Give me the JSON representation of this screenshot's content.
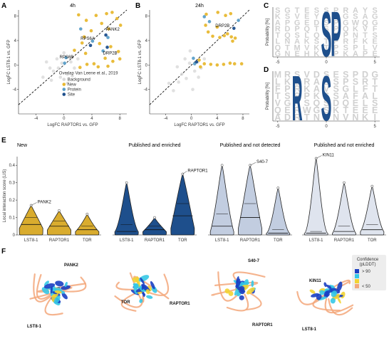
{
  "panel_letters": [
    "A",
    "B",
    "C",
    "D",
    "E",
    "F"
  ],
  "colors": {
    "background": "#d8d8d8",
    "new": "#e8b830",
    "protein": "#5b9fc9",
    "site": "#1e4f8c",
    "violin_new": "#d9ac2e",
    "violin_enriched": "#1e4f8c",
    "violin_notdetected": "#c2cde0",
    "violin_notenriched": "#dfe4ee"
  },
  "icons": [
    "structure-pank2-icon",
    "structure-raptor1-icon",
    "structure-s40-7-icon",
    "structure-kin11-icon"
  ],
  "chart_data": [
    {
      "id": "A",
      "type": "scatter",
      "title": "4h",
      "xlabel": "LogFC RAPTOR1 vs. GFP",
      "ylabel": "LogFC LST8-1 vs. GFP",
      "xlim": [
        -6.5,
        9
      ],
      "ylim": [
        -8,
        9
      ],
      "xticks": [
        -4,
        0,
        4,
        8
      ],
      "yticks": [
        -4,
        0,
        4,
        8
      ],
      "diagonal": true,
      "legend_title": "Overlap Van Leene et al., 2019",
      "legend": [
        "Background",
        "New",
        "Protein",
        "Site"
      ],
      "series": [
        {
          "name": "Background",
          "points": [
            [
              -1.5,
              -1
            ],
            [
              -0.5,
              -2
            ],
            [
              0.5,
              -1.5
            ],
            [
              -2,
              -0.5
            ],
            [
              1,
              0.5
            ],
            [
              -1,
              1
            ],
            [
              -3,
              -2
            ],
            [
              0.5,
              -3
            ],
            [
              -0.3,
              0.3
            ],
            [
              1.5,
              -0.5
            ],
            [
              -1.8,
              -2.5
            ],
            [
              2,
              1
            ],
            [
              0,
              2
            ],
            [
              -2.5,
              0.5
            ],
            [
              1.2,
              -1.8
            ],
            [
              -0.8,
              -0.5
            ]
          ]
        },
        {
          "name": "New",
          "points": [
            [
              2.1,
              8.2
            ],
            [
              3.2,
              7.3
            ],
            [
              4.6,
              8.1
            ],
            [
              6.1,
              8.4
            ],
            [
              6.9,
              8.6
            ],
            [
              7.6,
              7.6
            ],
            [
              5.4,
              6.8
            ],
            [
              3.9,
              5.6
            ],
            [
              6.4,
              5.9
            ],
            [
              8.1,
              6.5
            ],
            [
              2.6,
              3.6
            ],
            [
              6.7,
              3.0
            ],
            [
              5.1,
              3.5
            ],
            [
              7.8,
              2.2
            ],
            [
              3.3,
              0.1
            ],
            [
              4.3,
              0.2
            ],
            [
              6.3,
              -0.2
            ],
            [
              2.3,
              -0.4
            ],
            [
              3.1,
              1.9
            ],
            [
              8.0,
              1.0
            ],
            [
              5.9,
              1.1
            ],
            [
              1.5,
              2.4
            ],
            [
              7.0,
              0.6
            ],
            [
              4.9,
              -0.3
            ],
            [
              2.9,
              4.6
            ]
          ]
        },
        {
          "name": "Protein",
          "points": [
            [
              2.4,
              5.9
            ],
            [
              4.1,
              3.9
            ],
            [
              5.6,
              2.3
            ],
            [
              6.3,
              4.5
            ],
            [
              0.1,
              0.3
            ],
            [
              0.3,
              1.2
            ]
          ]
        },
        {
          "name": "Site",
          "points": [
            [
              3.8,
              3.2
            ],
            [
              6.0,
              4.9
            ],
            [
              6.2,
              2.9
            ]
          ]
        }
      ],
      "annotations": [
        {
          "text": "RPS6A",
          "x": 3.8,
          "y": 3.2
        },
        {
          "text": "PANK2",
          "x": 6.0,
          "y": 4.9
        },
        {
          "text": "DRP2B",
          "x": 6.2,
          "y": 2.9
        },
        {
          "text": "RPS6B",
          "x": 2.2,
          "y": 1.3
        }
      ]
    },
    {
      "id": "B",
      "type": "scatter",
      "title": "24h",
      "xlabel": "LogFC RAPTOR1 vs. GFP",
      "ylabel": "LogFC LST8-1 vs. GFP",
      "xlim": [
        -6.5,
        9
      ],
      "ylim": [
        -8,
        9
      ],
      "xticks": [
        -4,
        0,
        4,
        8
      ],
      "yticks": [
        -4,
        0,
        4,
        8
      ],
      "diagonal": true,
      "series": [
        {
          "name": "Background",
          "points": [
            [
              -1.5,
              -1.5
            ],
            [
              -0.8,
              -2.2
            ],
            [
              0.5,
              -1
            ],
            [
              -2.2,
              -0.3
            ],
            [
              1,
              0.5
            ],
            [
              -1,
              1
            ],
            [
              -3.5,
              -3
            ],
            [
              0.2,
              -4
            ],
            [
              -0.3,
              0.3
            ],
            [
              1.5,
              -0.5
            ],
            [
              -2,
              -2.8
            ],
            [
              2,
              1
            ],
            [
              -0.2,
              2.3
            ],
            [
              -2.8,
              -4.2
            ],
            [
              1.1,
              -2
            ]
          ]
        },
        {
          "name": "New",
          "points": [
            [
              2.3,
              8.3
            ],
            [
              4.1,
              8.6
            ],
            [
              5.3,
              8.1
            ],
            [
              6.1,
              8.4
            ],
            [
              2.2,
              6.5
            ],
            [
              2.6,
              5.4
            ],
            [
              4.0,
              6.2
            ],
            [
              3.3,
              4.7
            ],
            [
              4.4,
              4.5
            ],
            [
              5.1,
              4.8
            ],
            [
              6.2,
              4.6
            ],
            [
              6.8,
              4.4
            ],
            [
              5.6,
              5.1
            ],
            [
              6.4,
              3.9
            ],
            [
              2.0,
              0.2
            ],
            [
              3.0,
              0.1
            ],
            [
              4.0,
              0.0
            ],
            [
              5.0,
              0.1
            ],
            [
              6.0,
              0.3
            ],
            [
              6.7,
              0.2
            ],
            [
              7.8,
              0.2
            ],
            [
              1.4,
              -0.3
            ],
            [
              1.2,
              0.8
            ]
          ]
        },
        {
          "name": "Protein",
          "points": [
            [
              2.0,
              7.9
            ],
            [
              2.8,
              7.1
            ],
            [
              0.5,
              0.2
            ],
            [
              0.3,
              1.1
            ],
            [
              7.3,
              7.3
            ]
          ]
        },
        {
          "name": "Site",
          "points": [
            [
              6.6,
              6.0
            ],
            [
              0.8,
              0.5
            ]
          ]
        }
      ],
      "annotations": [
        {
          "text": "DRP2B",
          "x": 6.6,
          "y": 6.0
        }
      ]
    },
    {
      "id": "C",
      "type": "other",
      "subtype": "sequence-logo",
      "ylabel": "Probability [%]",
      "xticks": [
        -5,
        0,
        5
      ],
      "highlight": [
        {
          "letter": "S",
          "position": 0
        },
        {
          "letter": "P",
          "position": 1
        }
      ],
      "background_rows": [
        "SGTESSPRAYS",
        "KSVEYSPGSAG",
        "APGEDSPGWQG",
        "RDPQTSPQKVF",
        "TQSLQTPPNTS",
        "LNAKSTPRFKE",
        "QTMVKTPSPLV",
        "GNEHKSPKAPE"
      ]
    },
    {
      "id": "D",
      "type": "other",
      "subtype": "sequence-logo",
      "ylabel": "Probability [%]",
      "xticks": [
        -5,
        0,
        5
      ],
      "highlight": [
        {
          "letter": "R",
          "position": -3
        },
        {
          "letter": "S",
          "position": 0
        }
      ],
      "background_rows": [
        "MRSVDSESPDG",
        "LKLRAESPSRT",
        "FPRKAVSGLFT",
        "TSRPKSSAFAL",
        "VGRSQSDQELS",
        "QERWGSKTEEE",
        "ADRTNSNVNKI"
      ]
    },
    {
      "id": "E",
      "type": "violin",
      "ylabel": "Local interaction score (LIS)",
      "ylim": [
        0,
        0.45
      ],
      "yticks": [
        0,
        0.1,
        0.2,
        0.3,
        0.4
      ],
      "categories": [
        "LST8-1",
        "RAPTOR1",
        "TOR"
      ],
      "groups": [
        {
          "title": "New",
          "label": "PANK2",
          "label_target": "LST8-1",
          "label_value": 0.17,
          "values": {
            "LST8-1": {
              "max": 0.17,
              "median": 0.06,
              "q1": 0.03,
              "q3": 0.1
            },
            "RAPTOR1": {
              "max": 0.14,
              "median": 0.05,
              "q1": 0.02,
              "q3": 0.08
            },
            "TOR": {
              "max": 0.12,
              "median": 0.03,
              "q1": 0.01,
              "q3": 0.05
            }
          }
        },
        {
          "title": "Published and enriched",
          "label": "RAPTOR1",
          "label_target": "TOR",
          "label_value": 0.35,
          "values": {
            "LST8-1": {
              "max": 0.3,
              "median": 0.02,
              "q1": 0.01,
              "q3": 0.06
            },
            "RAPTOR1": {
              "max": 0.1,
              "median": 0.03,
              "q1": 0.01,
              "q3": 0.05
            },
            "TOR": {
              "max": 0.35,
              "median": 0.11,
              "q1": 0.03,
              "q3": 0.18
            }
          }
        },
        {
          "title": "Published and not detected",
          "label": "S40-7",
          "label_target": "RAPTOR1",
          "label_value": 0.4,
          "values": {
            "LST8-1": {
              "max": 0.4,
              "median": 0.05,
              "q1": 0.01,
              "q3": 0.12
            },
            "RAPTOR1": {
              "max": 0.4,
              "median": 0.1,
              "q1": 0.03,
              "q3": 0.18
            },
            "TOR": {
              "max": 0.27,
              "median": 0.01,
              "q1": 0.0,
              "q3": 0.03
            }
          }
        },
        {
          "title": "Published and not enriched",
          "label": "KIN11",
          "label_target": "LST8-1",
          "label_value": 0.44,
          "values": {
            "LST8-1": {
              "max": 0.44,
              "median": 0.01,
              "q1": 0.0,
              "q3": 0.02
            },
            "RAPTOR1": {
              "max": 0.3,
              "median": 0.02,
              "q1": 0.0,
              "q3": 0.05
            },
            "TOR": {
              "max": 0.28,
              "median": 0.03,
              "q1": 0.01,
              "q3": 0.06
            }
          }
        }
      ]
    }
  ],
  "panelF": {
    "legend_title": "Confidence\n(pLDDT)",
    "legend": [
      {
        "label": "> 90",
        "color": "#1a3fc2"
      },
      {
        "label": "",
        "color": "#35c8e6"
      },
      {
        "label": "",
        "color": "#f2d332"
      },
      {
        "label": "< 50",
        "color": "#f3a77a"
      }
    ],
    "structures": [
      {
        "name": "PANK2",
        "partner": "LST8-1"
      },
      {
        "name": "RAPTOR1",
        "partner": "TOR"
      },
      {
        "name": "S40-7",
        "partner": "RAPTOR1"
      },
      {
        "name": "KIN11",
        "partner": "LST8-1"
      }
    ]
  }
}
